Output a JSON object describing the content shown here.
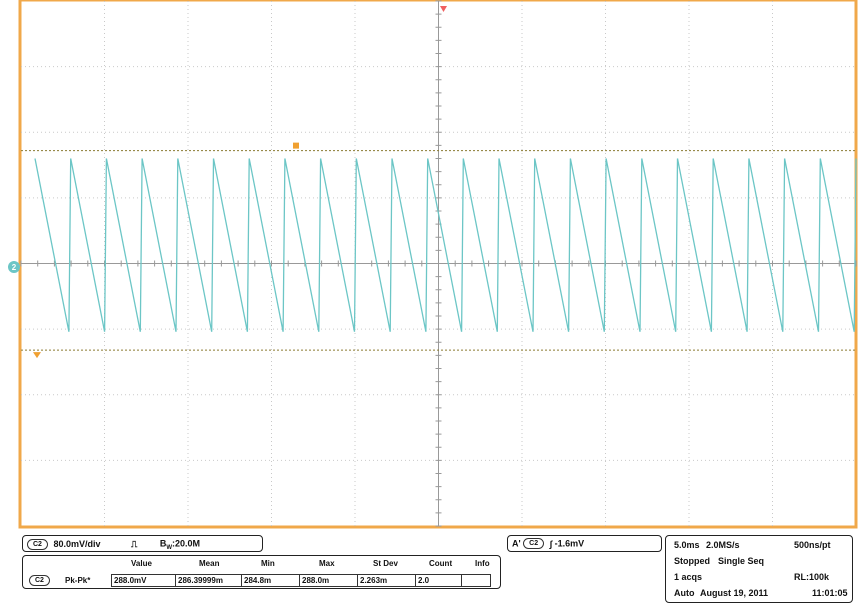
{
  "colors": {
    "frame": "#f0a84a",
    "grid_dotted": "#c9c9c9",
    "trace": "#6cc6c6",
    "cursor": "#8a7a30",
    "cursor_marker": "#f0a030",
    "channel_marker": "#6cc6c6"
  },
  "waveform": {
    "channel": "C2",
    "cycles": 23,
    "high_fraction": 0.3,
    "low_fraction": 0.63,
    "cursor_high_fraction": 0.285,
    "cursor_low_fraction": 0.665,
    "shape": "sawtooth-falling"
  },
  "channel_info": {
    "channel_tag": "C2",
    "vdiv": "80.0mV/div",
    "coupling_symbol": "⎍",
    "bw_label": "B",
    "bw_sub": "W",
    "bw_value": ":20.0M"
  },
  "measurement": {
    "headers": [
      "Value",
      "Mean",
      "Min",
      "Max",
      "St Dev",
      "Count",
      "Info"
    ],
    "channel_tag": "C2",
    "name": "Pk-Pk*",
    "values": [
      "288.0mV",
      "286.39999m",
      "284.8m",
      "288.0m",
      "2.263m",
      "2.0",
      ""
    ]
  },
  "trigger": {
    "prefix": "A'",
    "channel_tag": "C2",
    "slope_symbol": "∫",
    "level": "-1.6mV"
  },
  "timebase": {
    "time_div": "5.0ms",
    "sample_rate": "2.0MS/s",
    "ns_per_pt": "500ns/pt",
    "status": "Stopped",
    "mode": "Single Seq",
    "acqs": "1 acqs",
    "record_length": "RL:100k",
    "trigger_mode": "Auto",
    "date": "August 19, 2011",
    "time": "11:01:05"
  },
  "channel_marker_label": "2"
}
